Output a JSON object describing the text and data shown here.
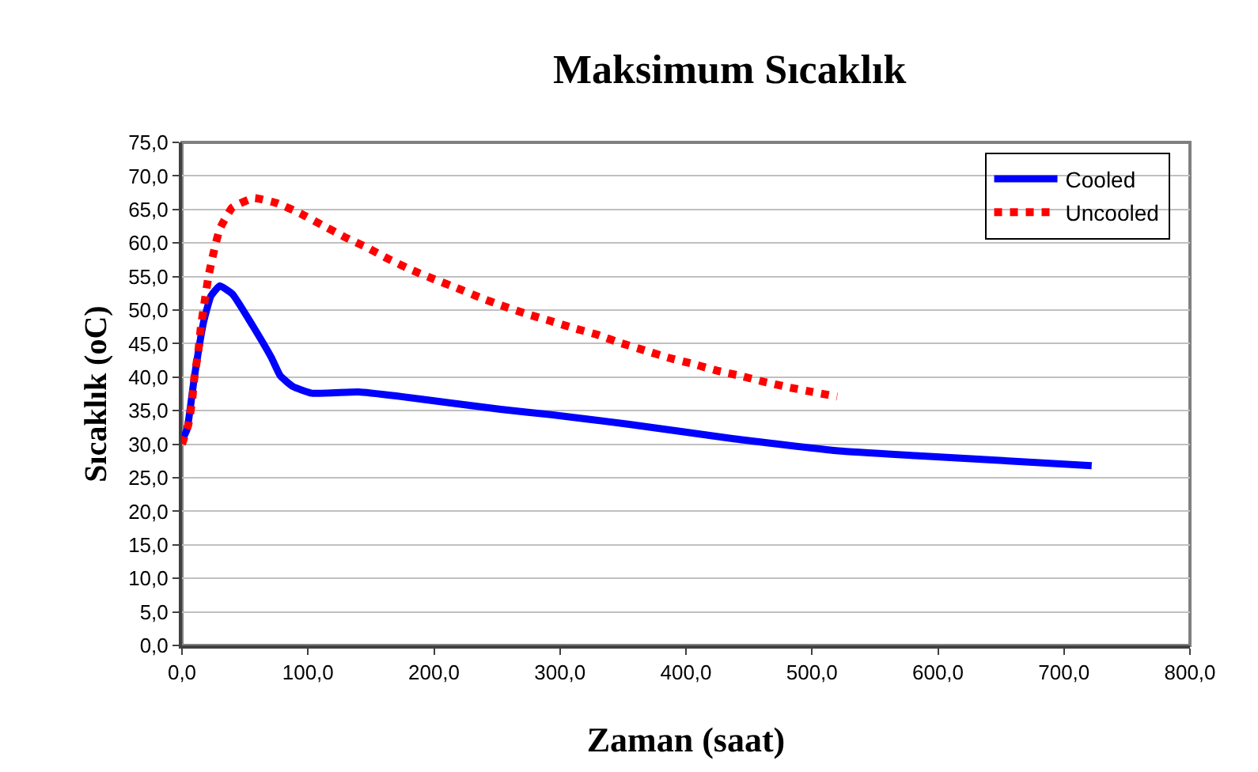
{
  "chart_data": {
    "type": "line",
    "title": "Maksimum Sıcaklık",
    "xlabel": "Zaman (saat)",
    "ylabel": "Sıcaklık (oC)",
    "xlim": [
      0,
      800
    ],
    "ylim": [
      0,
      75
    ],
    "xticks": [
      {
        "value": 0,
        "label": "0,0"
      },
      {
        "value": 100,
        "label": "100,0"
      },
      {
        "value": 200,
        "label": "200,0"
      },
      {
        "value": 300,
        "label": "300,0"
      },
      {
        "value": 400,
        "label": "400,0"
      },
      {
        "value": 500,
        "label": "500,0"
      },
      {
        "value": 600,
        "label": "600,0"
      },
      {
        "value": 700,
        "label": "700,0"
      },
      {
        "value": 800,
        "label": "800,0"
      }
    ],
    "yticks": [
      {
        "value": 0,
        "label": "0,0"
      },
      {
        "value": 5,
        "label": "5,0"
      },
      {
        "value": 10,
        "label": "10,0"
      },
      {
        "value": 15,
        "label": "15,0"
      },
      {
        "value": 20,
        "label": "20,0"
      },
      {
        "value": 25,
        "label": "25,0"
      },
      {
        "value": 30,
        "label": "30,0"
      },
      {
        "value": 35,
        "label": "35,0"
      },
      {
        "value": 40,
        "label": "40,0"
      },
      {
        "value": 45,
        "label": "45,0"
      },
      {
        "value": 50,
        "label": "50,0"
      },
      {
        "value": 55,
        "label": "55,0"
      },
      {
        "value": 60,
        "label": "60,0"
      },
      {
        "value": 65,
        "label": "65,0"
      },
      {
        "value": 70,
        "label": "70,0"
      },
      {
        "value": 75,
        "label": "75,0"
      }
    ],
    "grid": "y",
    "legend": "top right",
    "marker": "none",
    "series": [
      {
        "name": "Cooled",
        "color": "#0000ff",
        "line_style": "solid",
        "x": [
          0,
          4,
          10,
          17,
          23,
          30,
          40,
          56,
          71,
          78,
          88,
          103,
          140,
          170,
          211,
          253,
          293,
          354,
          438,
          521,
          582,
          722
        ],
        "values": [
          30.6,
          32.2,
          40.2,
          48.1,
          52.1,
          53.6,
          52.4,
          47.7,
          42.9,
          40.2,
          38.6,
          37.6,
          37.8,
          37.2,
          36.2,
          35.2,
          34.4,
          33.0,
          30.8,
          29.0,
          28.3,
          26.8
        ]
      },
      {
        "name": "Uncooled",
        "color": "#ff0000",
        "line_style": "dotted",
        "x": [
          0,
          5,
          8,
          10,
          13,
          15,
          18,
          21,
          25,
          30,
          40,
          57,
          76,
          94,
          111,
          129,
          147,
          164,
          182,
          200,
          218,
          236,
          255,
          274,
          292,
          311,
          330,
          348,
          367,
          386,
          405,
          424,
          443,
          462,
          481,
          500,
          520
        ],
        "values": [
          30.0,
          32.9,
          36.4,
          40.2,
          43.9,
          47.5,
          51.3,
          55.0,
          58.5,
          62.1,
          65.3,
          66.7,
          65.9,
          64.4,
          62.7,
          60.9,
          59.3,
          57.6,
          56.0,
          54.6,
          53.3,
          51.9,
          50.6,
          49.4,
          48.4,
          47.3,
          46.3,
          45.1,
          44.0,
          42.9,
          42.0,
          41.0,
          40.2,
          39.3,
          38.5,
          37.8,
          37.1
        ]
      }
    ]
  }
}
